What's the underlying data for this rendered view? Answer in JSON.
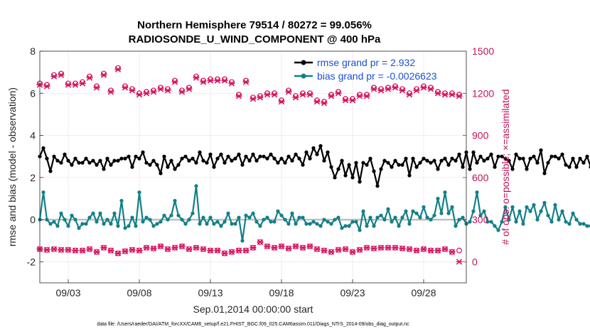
{
  "chart_data": {
    "type": "line",
    "title_line1": "Northern Hemisphere 79514 / 80272 = 99.056%",
    "title_line2": "RADIOSONDE_U_WIND_COMPONENT @ 400 hPa",
    "ylabel": "rmse and bias (model - observation)",
    "ylabel_right": "# of obs: o=possible; ×=assimilated",
    "xlabel": "Sep.01,2014 00:00:00 start",
    "footer": "data file: /Users/raeder/DAI/ATM_forcXX/CAM6_setup/f.e21.FHIST_BGC.f09_025.CAM6assim.011/Diags_NTrS_2014-09/obs_diag_output.nc",
    "x_range": [
      1.0,
      31.0
    ],
    "ylim": [
      -3,
      8
    ],
    "ylim_right": [
      -150,
      1500
    ],
    "yticks": [
      "8",
      "6",
      "4",
      "2",
      "0",
      "-2"
    ],
    "yticks_values": [
      8,
      6,
      4,
      2,
      0,
      -2
    ],
    "yticks_right": [
      "1500",
      "1200",
      "900",
      "600",
      "300",
      "0"
    ],
    "yticks_right_values": [
      1500,
      1200,
      900,
      600,
      300,
      0
    ],
    "xticks": [
      "09/03",
      "09/08",
      "09/13",
      "09/18",
      "09/23",
      "09/28"
    ],
    "xticks_values": [
      3,
      8,
      13,
      18,
      23,
      28
    ],
    "grid": true,
    "legend_location": "top-right",
    "colors": {
      "rmse": "#000000",
      "bias": "#138087",
      "obs": "#d6145f",
      "zero": "#bfbfbf"
    },
    "series": [
      {
        "name": "rmse grand pr = 2.932",
        "axis": "left",
        "x_start": 1.0,
        "x_step": 0.25,
        "values": [
          3.0,
          3.4,
          2.9,
          2.3,
          3.0,
          2.8,
          2.7,
          3.1,
          2.8,
          2.6,
          2.9,
          2.7,
          2.7,
          2.9,
          2.7,
          2.8,
          2.6,
          2.8,
          2.4,
          2.9,
          2.6,
          2.8,
          2.8,
          2.9,
          2.9,
          3.0,
          2.5,
          3.0,
          2.9,
          3.2,
          2.7,
          2.6,
          2.8,
          2.6,
          2.2,
          3.0,
          2.5,
          2.8,
          2.4,
          2.6,
          2.9,
          3.0,
          2.8,
          2.9,
          2.7,
          3.2,
          2.8,
          2.7,
          3.1,
          2.5,
          2.9,
          3.1,
          2.7,
          3.0,
          2.8,
          2.9,
          3.1,
          2.6,
          3.0,
          2.8,
          3.1,
          2.8,
          3.0,
          3.0,
          2.9,
          3.1,
          2.9,
          2.7,
          2.9,
          2.7,
          3.0,
          2.8,
          3.1,
          2.9,
          2.6,
          3.2,
          2.9,
          3.4,
          3.1,
          3.5,
          2.8,
          3.2,
          2.5,
          2.0,
          2.4,
          2.8,
          2.1,
          2.6,
          2.0,
          2.7,
          1.8,
          2.7,
          2.6,
          2.9,
          2.3,
          1.6,
          2.4,
          2.8,
          2.7,
          2.5,
          2.8,
          2.6,
          2.6,
          2.9,
          2.1,
          2.9,
          2.5,
          2.7,
          2.9,
          2.8,
          2.7,
          2.8,
          2.4,
          2.8,
          2.9,
          2.6,
          2.9,
          2.8,
          3.1,
          2.5,
          3.2,
          2.4,
          3.2,
          2.7,
          3.0,
          2.8,
          2.9,
          3.1,
          2.5,
          3.0,
          3.0,
          2.9,
          2.8,
          2.4,
          3.1,
          2.9,
          2.9,
          2.4,
          2.9,
          3.0,
          2.7,
          3.3,
          2.2,
          2.7,
          3.0,
          3.0,
          2.9,
          3.1,
          2.6,
          2.5,
          2.9,
          2.5,
          2.9,
          2.7,
          3.0,
          2.5,
          2.8,
          2.9,
          2.8,
          2.7,
          2.9,
          3.2,
          3.3,
          3.2,
          3.1,
          2.9,
          2.6,
          3.1,
          2.6,
          2.8,
          2.7,
          3.0,
          2.9,
          2.8,
          3.3,
          2.9,
          3.0,
          2.2,
          2.7,
          2.5,
          2.9,
          2.7,
          2.5,
          2.7,
          2.9,
          2.7,
          3.0,
          2.6,
          2.1,
          2.8,
          2.6,
          2.3,
          2.9,
          3.0,
          2.7,
          2.9,
          2.6,
          2.7,
          2.5,
          2.9,
          2.6,
          2.2,
          2.5,
          2.9,
          3.1,
          2.6,
          2.7
        ]
      },
      {
        "name": "bias grand pr = -0.0026623",
        "axis": "left",
        "x_start": 1.0,
        "x_step": 0.25,
        "values": [
          0.0,
          1.3,
          0.0,
          -0.2,
          -0.1,
          -0.3,
          0.3,
          0.0,
          -0.3,
          0.2,
          0.0,
          -0.4,
          -0.2,
          -0.2,
          0.1,
          0.3,
          -0.1,
          0.3,
          -0.2,
          0.0,
          -0.2,
          0.3,
          -0.3,
          0.9,
          -0.4,
          -0.3,
          0.1,
          -0.3,
          1.3,
          -0.1,
          0.1,
          0.0,
          -0.3,
          -0.2,
          -0.1,
          0.2,
          0.0,
          0.2,
          0.9,
          0.2,
          0.0,
          -0.2,
          0.0,
          0.3,
          1.6,
          -0.2,
          0.1,
          -0.2,
          0.1,
          -0.2,
          -0.1,
          -0.3,
          -0.1,
          0.3,
          -0.2,
          -0.2,
          0.1,
          -1.0,
          0.2,
          0.1,
          0.3,
          -0.1,
          -0.3,
          0.0,
          0.1,
          -0.1,
          -0.1,
          0.4,
          0.2,
          0.0,
          -0.2,
          0.3,
          -0.2,
          0.1,
          0.1,
          -0.2,
          -0.2,
          -0.1,
          -0.2,
          -0.3,
          0.0,
          -0.1,
          -0.2,
          0.0,
          0.1,
          -0.4,
          -0.3,
          -0.3,
          -0.1,
          -0.1,
          -0.5,
          0.4,
          -0.3,
          0.1,
          -0.3,
          0.1,
          0.2,
          0.0,
          0.5,
          -0.1,
          0.1,
          -0.3,
          0.1,
          0.4,
          -0.2,
          0.4,
          0.3,
          0.1,
          0.6,
          0.1,
          0.0,
          0.2,
          1.0,
          0.3,
          1.3,
          0.3,
          0.6,
          -0.3,
          0.0,
          0.1,
          -0.2,
          -0.1,
          0.4,
          1.3,
          0.2,
          0.4,
          -0.1,
          -0.1,
          -0.3,
          -0.5,
          -0.1,
          0.6,
          0.0,
          0.6,
          -0.1,
          0.4,
          -0.2,
          0.6,
          0.4,
          0.7,
          0.0,
          0.4,
          0.8,
          0.2,
          -0.1,
          0.7,
          0.0,
          0.4,
          -0.1,
          -0.2,
          0.3,
          0.0,
          -0.2,
          -0.2,
          -0.3,
          -0.3,
          0.2,
          0.3,
          0.1,
          0.2,
          0.1,
          0.2,
          0.2,
          0.6,
          0.2,
          0.1,
          0.0,
          -0.2,
          -0.4,
          0.1,
          0.7,
          0.3,
          -0.2,
          -0.2,
          -0.3,
          0.1,
          0.2,
          0.1,
          0.3,
          0.3,
          0.2,
          0.2,
          0.0,
          0.3,
          0.3,
          0.9,
          0.1,
          0.8,
          0.0,
          0.5,
          -0.1,
          0.1,
          -0.2,
          0.0,
          0.3,
          0.1,
          0.0,
          -0.1,
          0.2,
          0.2,
          0.9,
          0.3,
          0.2,
          0.1,
          0.7,
          0.1,
          -0.9
        ]
      },
      {
        "name": "obs possible",
        "axis": "right",
        "marker": "o",
        "x_start": 1.0,
        "x_step": 0.5,
        "values": [
          1270,
          1260,
          1330,
          1340,
          1270,
          1270,
          1280,
          1320,
          1250,
          1340,
          1220,
          1380,
          1250,
          1230,
          1200,
          1210,
          1220,
          1240,
          1230,
          1290,
          1220,
          1240,
          1320,
          1290,
          1300,
          1300,
          1300,
          1280,
          1190,
          1290,
          1170,
          1180,
          1200,
          1200,
          1150,
          1220,
          1180,
          1200,
          1200,
          1150,
          1140,
          1190,
          1210,
          1160,
          1160,
          1190,
          1190,
          1240,
          1230,
          1240,
          1250,
          1230,
          1200,
          1230,
          1250,
          1240,
          1210,
          1200,
          1200,
          1190
        ]
      },
      {
        "name": "obs assimilated",
        "axis": "right",
        "marker": "x",
        "x_start": 1.0,
        "x_step": 0.5,
        "values": [
          1260,
          1250,
          1320,
          1330,
          1260,
          1260,
          1270,
          1310,
          1240,
          1330,
          1210,
          1370,
          1240,
          1220,
          1190,
          1200,
          1210,
          1230,
          1220,
          1280,
          1210,
          1230,
          1310,
          1280,
          1290,
          1290,
          1290,
          1270,
          1180,
          1280,
          1160,
          1170,
          1190,
          1190,
          1140,
          1210,
          1170,
          1190,
          1190,
          1140,
          1130,
          1180,
          1200,
          1150,
          1150,
          1180,
          1180,
          1230,
          1220,
          1230,
          1240,
          1220,
          1190,
          1220,
          1240,
          1230,
          1200,
          1190,
          1190,
          1180
        ]
      },
      {
        "name": "obs possible lower",
        "axis": "right",
        "marker": "o",
        "x_start": 1.0,
        "x_step": 0.5,
        "values": [
          90,
          85,
          90,
          85,
          85,
          80,
          80,
          90,
          70,
          100,
          80,
          60,
          75,
          85,
          80,
          100,
          95,
          110,
          90,
          100,
          110,
          90,
          100,
          90,
          80,
          80,
          60,
          70,
          80,
          80,
          100,
          140,
          110,
          100,
          110,
          95,
          110,
          100,
          110,
          90,
          80,
          70,
          85,
          90,
          70,
          85,
          100,
          95,
          100,
          100,
          100,
          95,
          90,
          80,
          90,
          80,
          80,
          90,
          70,
          80
        ]
      },
      {
        "name": "obs assimilated lower",
        "axis": "right",
        "marker": "x",
        "x_start": 1.0,
        "x_step": 0.5,
        "values": [
          90,
          85,
          90,
          85,
          85,
          80,
          80,
          90,
          70,
          100,
          80,
          60,
          75,
          85,
          80,
          100,
          95,
          110,
          90,
          100,
          110,
          90,
          100,
          90,
          80,
          80,
          60,
          70,
          80,
          80,
          100,
          140,
          110,
          100,
          110,
          95,
          110,
          100,
          110,
          90,
          80,
          70,
          85,
          90,
          70,
          85,
          100,
          95,
          100,
          100,
          100,
          95,
          90,
          80,
          90,
          80,
          80,
          90,
          70,
          0
        ]
      }
    ]
  }
}
